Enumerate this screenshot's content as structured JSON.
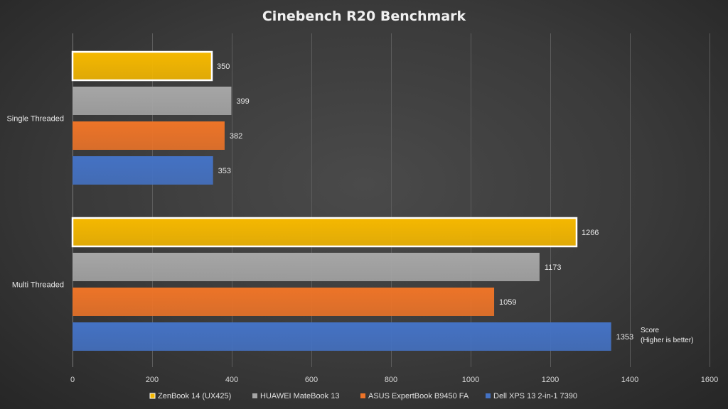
{
  "chart_data": {
    "type": "bar",
    "orientation": "horizontal",
    "title": "Cinebench  R20  Benchmark",
    "categories": [
      "Single Threaded",
      "Multi Threaded"
    ],
    "series": [
      {
        "name": "ZenBook 14 (UX425)",
        "color": "#f5b800",
        "highlight": true,
        "values": [
          350,
          1266
        ]
      },
      {
        "name": "HUAWEI MateBook 13",
        "color": "#a6a6a6",
        "highlight": false,
        "values": [
          399,
          1173
        ]
      },
      {
        "name": "ASUS ExpertBook B9450 FA",
        "color": "#ed7428",
        "highlight": false,
        "values": [
          382,
          1059
        ]
      },
      {
        "name": "Dell XPS 13 2-in-1 7390",
        "color": "#4472c4",
        "highlight": false,
        "values": [
          353,
          1353
        ]
      }
    ],
    "xlim": [
      0,
      1600
    ],
    "xticks": [
      0,
      200,
      400,
      600,
      800,
      1000,
      1200,
      1400,
      1600
    ],
    "grid": true,
    "legend_position": "bottom",
    "annotation": {
      "line1": "Score",
      "line2": "(Higher is better)"
    }
  }
}
